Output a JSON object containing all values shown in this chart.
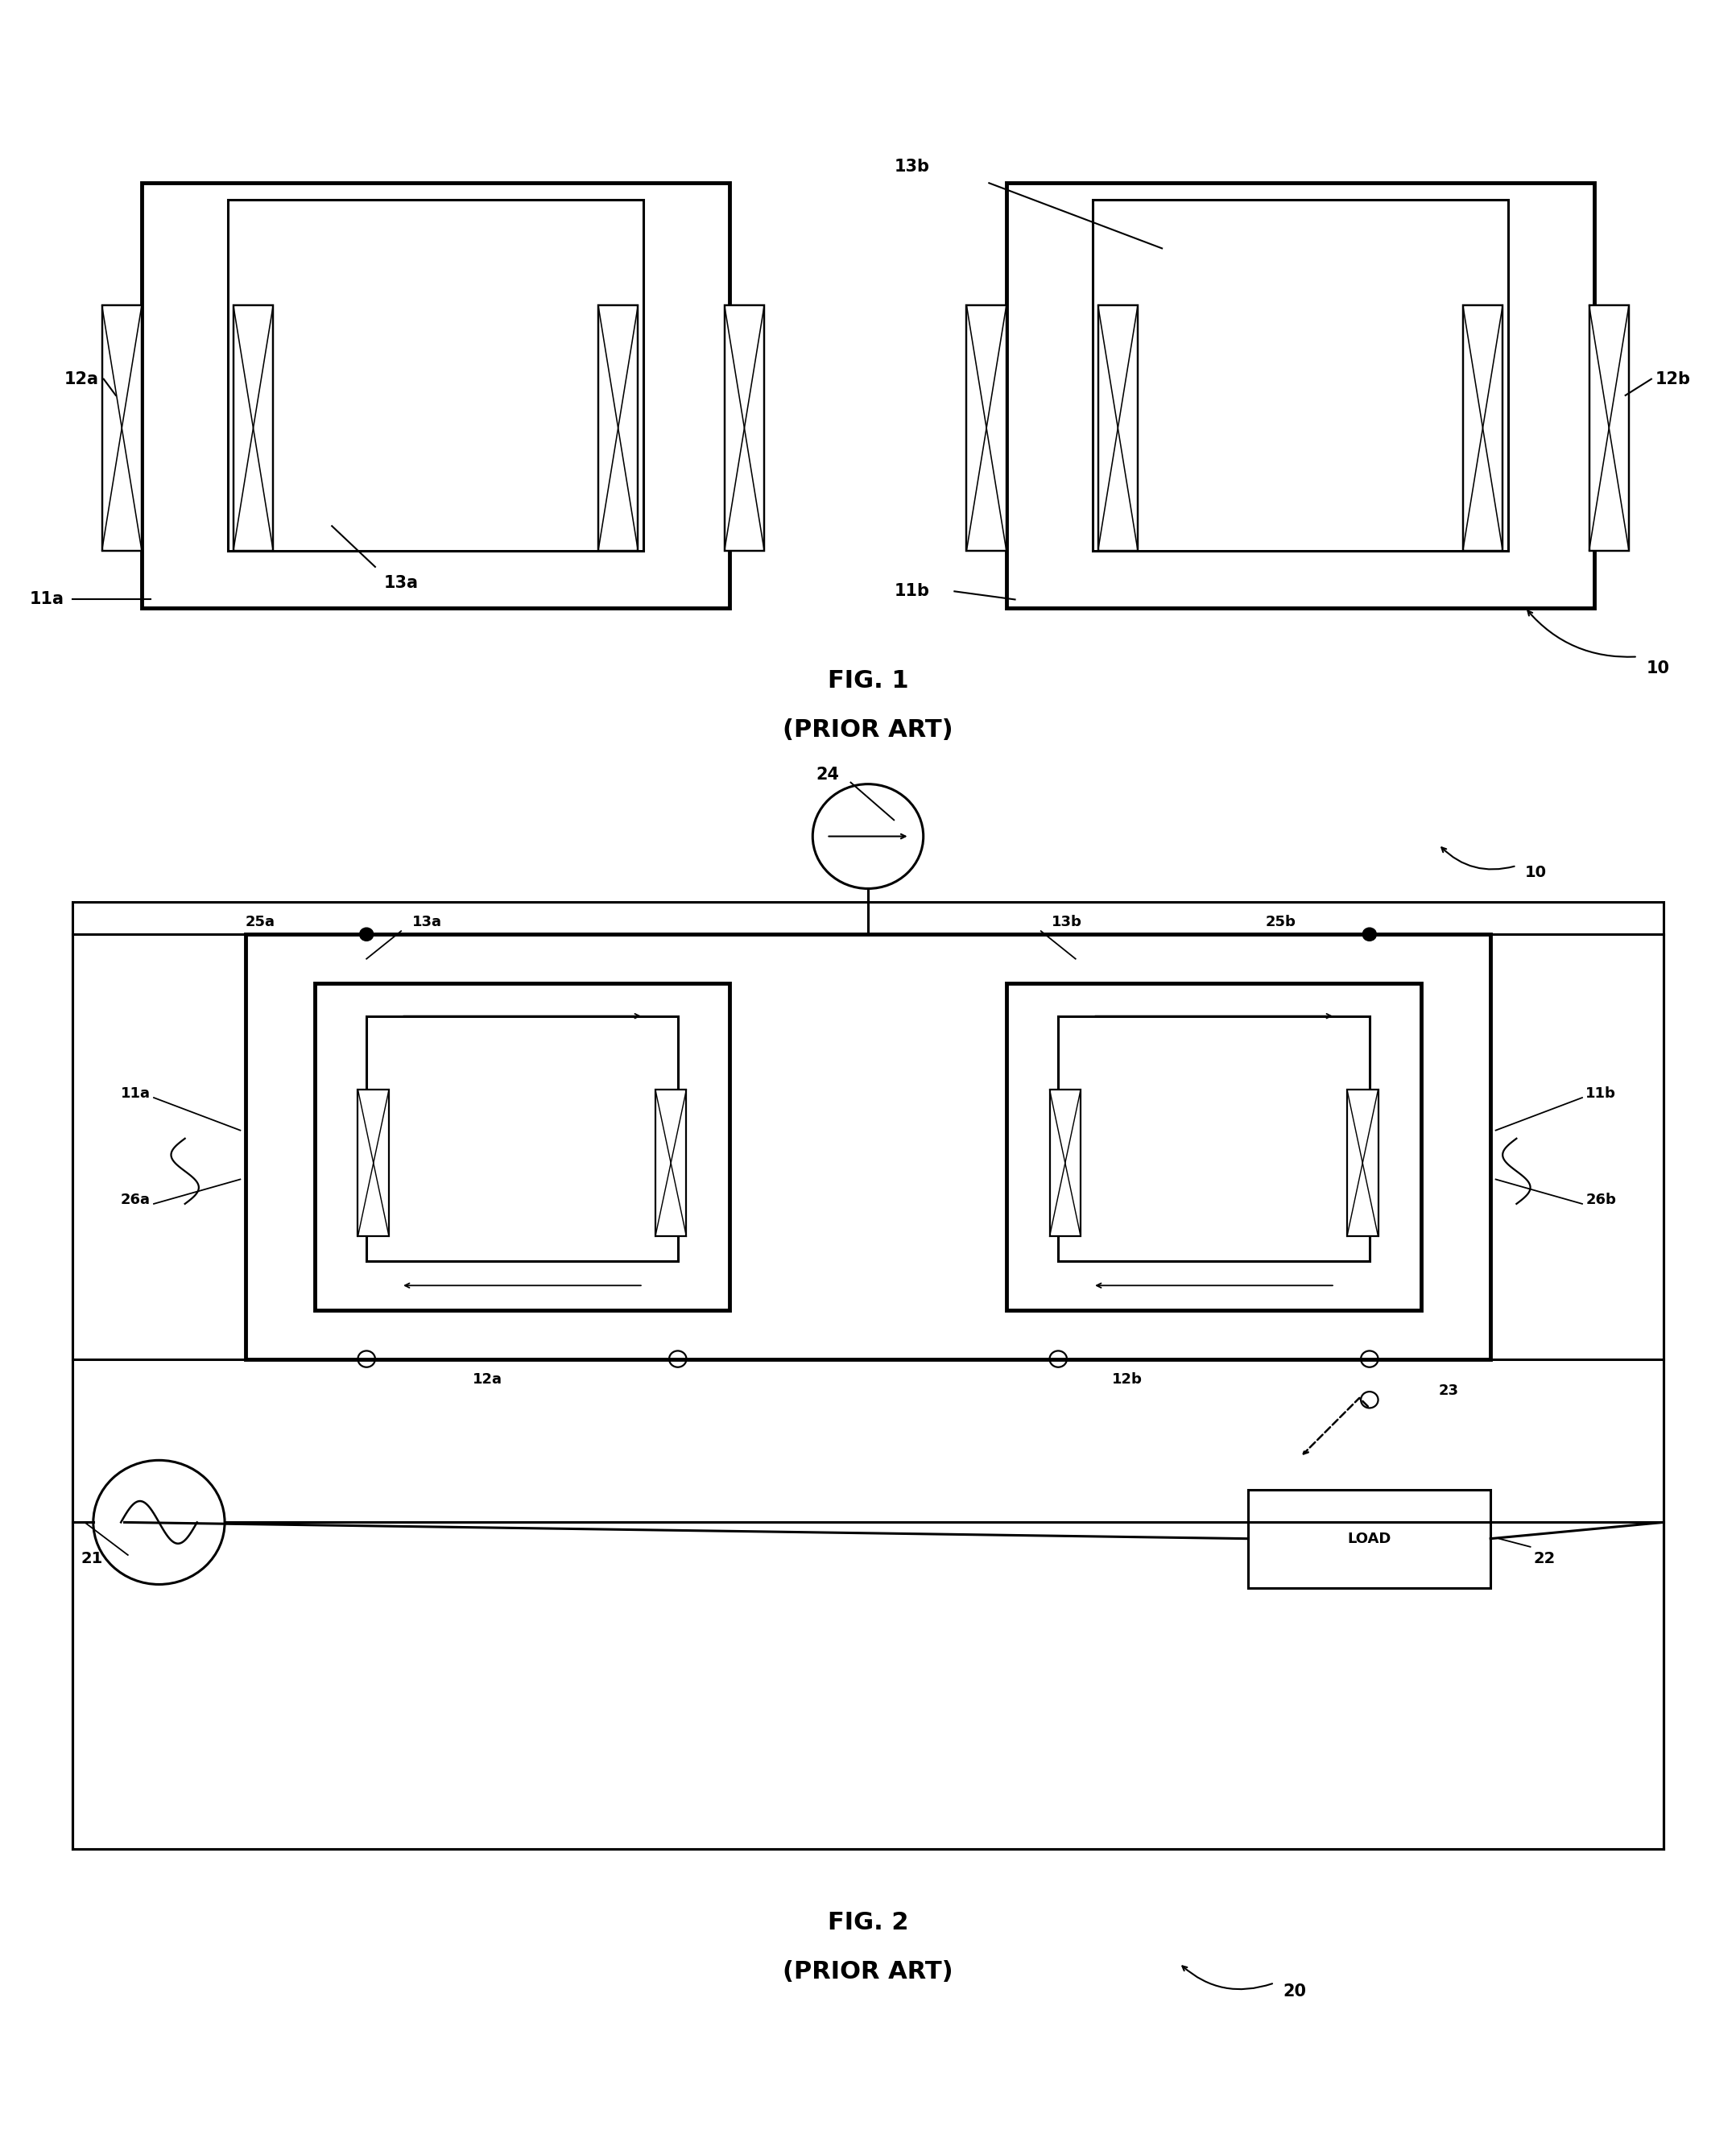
{
  "fig_width": 21.56,
  "fig_height": 26.45,
  "bg_color": "#ffffff",
  "lc": "#000000",
  "fig1_label": "FIG. 1",
  "fig1_sublabel": "(PRIOR ART)",
  "fig2_label": "FIG. 2",
  "fig2_sublabel": "(PRIOR ART)",
  "lw_thick": 3.5,
  "lw_med": 2.2,
  "lw_thin": 1.6
}
